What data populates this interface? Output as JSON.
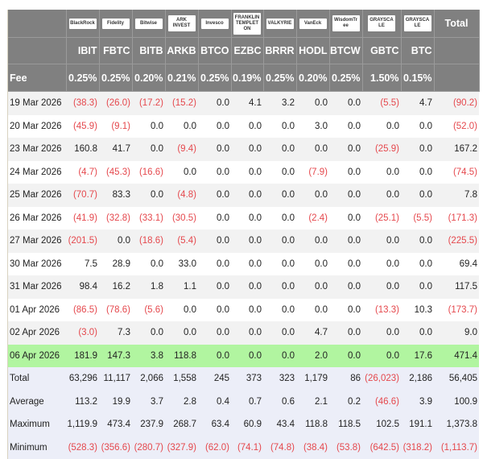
{
  "header": {
    "logos": [
      "BlackRock",
      "Fidelity",
      "Bitwise",
      "ARK INVEST",
      "Invesco",
      "FRANKLIN TEMPLETON",
      "VALKYRIE",
      "VanEck",
      "WisdomTree",
      "GRAYSCALE",
      "GRAYSCALE"
    ],
    "total_label": "Total",
    "tickers": [
      "IBIT",
      "FBTC",
      "BITB",
      "ARKB",
      "BTCO",
      "EZBC",
      "BRRR",
      "HODL",
      "BTCW",
      "GBTC",
      "BTC"
    ],
    "fee_label": "Fee",
    "fees": [
      "0.25%",
      "0.25%",
      "0.20%",
      "0.21%",
      "0.25%",
      "0.19%",
      "0.25%",
      "0.20%",
      "0.25%",
      "1.50%",
      "0.15%"
    ]
  },
  "colors": {
    "header_bg": "#808080",
    "negative": "#e5484d",
    "highlight": "#b1f5a0",
    "summary_bg": "#eceef8"
  },
  "rows": [
    {
      "date": "19 Mar 2026",
      "values": [
        "(38.3)",
        "(26.0)",
        "(17.2)",
        "(15.2)",
        "0.0",
        "4.1",
        "3.2",
        "0.0",
        "0.0",
        "(5.5)",
        "4.7",
        "(90.2)"
      ]
    },
    {
      "date": "20 Mar 2026",
      "values": [
        "(45.9)",
        "(9.1)",
        "0.0",
        "0.0",
        "0.0",
        "0.0",
        "0.0",
        "3.0",
        "0.0",
        "0.0",
        "0.0",
        "(52.0)"
      ]
    },
    {
      "date": "23 Mar 2026",
      "values": [
        "160.8",
        "41.7",
        "0.0",
        "(9.4)",
        "0.0",
        "0.0",
        "0.0",
        "0.0",
        "0.0",
        "(25.9)",
        "0.0",
        "167.2"
      ]
    },
    {
      "date": "24 Mar 2026",
      "values": [
        "(4.7)",
        "(45.3)",
        "(16.6)",
        "0.0",
        "0.0",
        "0.0",
        "0.0",
        "(7.9)",
        "0.0",
        "0.0",
        "0.0",
        "(74.5)"
      ]
    },
    {
      "date": "25 Mar 2026",
      "values": [
        "(70.7)",
        "83.3",
        "0.0",
        "(4.8)",
        "0.0",
        "0.0",
        "0.0",
        "0.0",
        "0.0",
        "0.0",
        "0.0",
        "7.8"
      ]
    },
    {
      "date": "26 Mar 2026",
      "values": [
        "(41.9)",
        "(32.8)",
        "(33.1)",
        "(30.5)",
        "0.0",
        "0.0",
        "0.0",
        "(2.4)",
        "0.0",
        "(25.1)",
        "(5.5)",
        "(171.3)"
      ]
    },
    {
      "date": "27 Mar 2026",
      "values": [
        "(201.5)",
        "0.0",
        "(18.6)",
        "(5.4)",
        "0.0",
        "0.0",
        "0.0",
        "0.0",
        "0.0",
        "0.0",
        "0.0",
        "(225.5)"
      ]
    },
    {
      "date": "30 Mar 2026",
      "values": [
        "7.5",
        "28.9",
        "0.0",
        "33.0",
        "0.0",
        "0.0",
        "0.0",
        "0.0",
        "0.0",
        "0.0",
        "0.0",
        "69.4"
      ]
    },
    {
      "date": "31 Mar 2026",
      "values": [
        "98.4",
        "16.2",
        "1.8",
        "1.1",
        "0.0",
        "0.0",
        "0.0",
        "0.0",
        "0.0",
        "0.0",
        "0.0",
        "117.5"
      ]
    },
    {
      "date": "01 Apr 2026",
      "values": [
        "(86.5)",
        "(78.6)",
        "(5.6)",
        "0.0",
        "0.0",
        "0.0",
        "0.0",
        "0.0",
        "0.0",
        "(13.3)",
        "10.3",
        "(173.7)"
      ]
    },
    {
      "date": "02 Apr 2026",
      "values": [
        "(3.0)",
        "7.3",
        "0.0",
        "0.0",
        "0.0",
        "0.0",
        "0.0",
        "4.7",
        "0.0",
        "0.0",
        "0.0",
        "9.0"
      ]
    },
    {
      "date": "06 Apr 2026",
      "highlight": true,
      "values": [
        "181.9",
        "147.3",
        "3.8",
        "118.8",
        "0.0",
        "0.0",
        "0.0",
        "2.0",
        "0.0",
        "0.0",
        "17.6",
        "471.4"
      ]
    }
  ],
  "summary": [
    {
      "label": "Total",
      "values": [
        "63,296",
        "11,117",
        "2,066",
        "1,558",
        "245",
        "373",
        "323",
        "1,179",
        "86",
        "(26,023)",
        "2,186",
        "56,405"
      ]
    },
    {
      "label": "Average",
      "values": [
        "113.2",
        "19.9",
        "3.7",
        "2.8",
        "0.4",
        "0.7",
        "0.6",
        "2.1",
        "0.2",
        "(46.6)",
        "3.9",
        "100.9"
      ]
    },
    {
      "label": "Maximum",
      "values": [
        "1,119.9",
        "473.4",
        "237.9",
        "268.7",
        "63.4",
        "60.9",
        "43.4",
        "118.8",
        "118.5",
        "102.5",
        "191.1",
        "1,373.8"
      ]
    },
    {
      "label": "Minimum",
      "values": [
        "(528.3)",
        "(356.6)",
        "(280.7)",
        "(327.9)",
        "(62.0)",
        "(74.1)",
        "(74.8)",
        "(38.4)",
        "(53.8)",
        "(642.5)",
        "(318.2)",
        "(1,113.7)"
      ]
    }
  ]
}
